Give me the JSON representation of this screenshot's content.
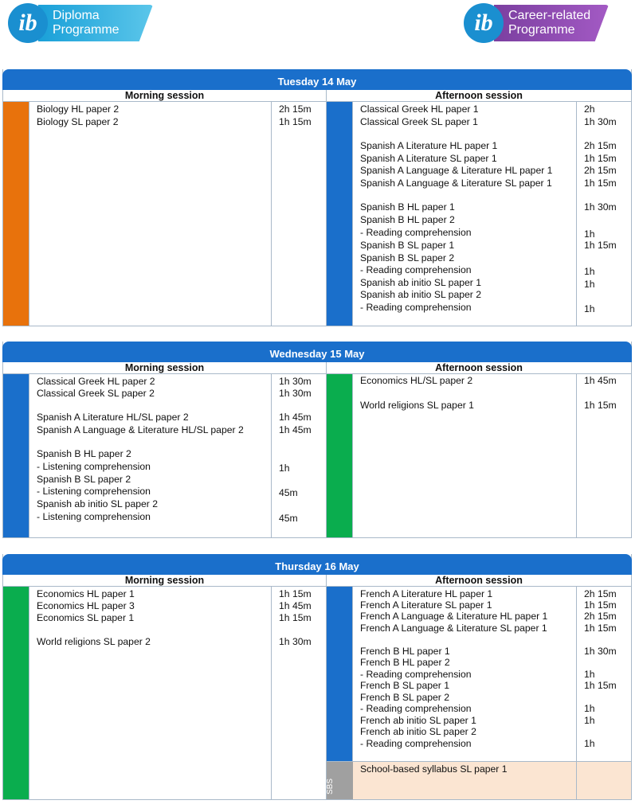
{
  "logos": {
    "left": {
      "mark": "ib",
      "line1": "Diploma",
      "line2": "Programme"
    },
    "right": {
      "mark": "ib",
      "line1": "Career-related",
      "line2": "Programme"
    }
  },
  "session_labels": {
    "morning": "Morning session",
    "afternoon": "Afternoon session"
  },
  "days": [
    {
      "title": "Tuesday 14 May",
      "morning": [
        {
          "subject": "Biology HL paper 2",
          "time": "2h 15m"
        },
        {
          "subject": "Biology SL paper 2",
          "time": "1h 15m"
        }
      ],
      "afternoon": [
        {
          "subject": "Classical Greek HL paper 1",
          "time": "2h"
        },
        {
          "subject": "Classical Greek SL paper 1",
          "time": "1h 30m"
        },
        {
          "subject": "Spanish A Literature HL paper 1",
          "time": "2h 15m"
        },
        {
          "subject": "Spanish A Literature SL paper 1",
          "time": "1h 15m"
        },
        {
          "subject": "Spanish A Language & Literature HL paper 1",
          "time": "2h 15m"
        },
        {
          "subject": "Spanish A Language & Literature SL paper 1",
          "time": "1h 15m"
        },
        {
          "subject": "Spanish B HL paper 1",
          "time": "1h 30m"
        },
        {
          "subject": "Spanish B HL paper 2",
          "time": ""
        },
        {
          "subject": "- Reading comprehension",
          "time": "1h"
        },
        {
          "subject": "Spanish B SL paper 1",
          "time": "1h 15m"
        },
        {
          "subject": "Spanish B SL paper 2",
          "time": ""
        },
        {
          "subject": "- Reading comprehension",
          "time": "1h"
        },
        {
          "subject": "Spanish ab initio SL paper 1",
          "time": "1h"
        },
        {
          "subject": "Spanish ab initio SL paper 2",
          "time": ""
        },
        {
          "subject": "- Reading comprehension",
          "time": "1h"
        }
      ]
    },
    {
      "title": "Wednesday 15 May",
      "morning": [
        {
          "subject": "Classical Greek HL paper 2",
          "time": "1h 30m"
        },
        {
          "subject": "Classical Greek SL paper 2",
          "time": "1h 30m"
        },
        {
          "subject": "Spanish A Literature HL/SL paper 2",
          "time": "1h 45m"
        },
        {
          "subject": "Spanish A Language & Literature HL/SL paper 2",
          "time": "1h 45m"
        },
        {
          "subject": "Spanish B HL paper 2",
          "time": ""
        },
        {
          "subject": "- Listening comprehension",
          "time": "1h"
        },
        {
          "subject": "Spanish B SL paper 2",
          "time": ""
        },
        {
          "subject": "- Listening comprehension",
          "time": "45m"
        },
        {
          "subject": "Spanish ab initio SL paper 2",
          "time": ""
        },
        {
          "subject": "- Listening comprehension",
          "time": "45m"
        }
      ],
      "afternoon": [
        {
          "subject": "Economics HL/SL paper 2",
          "time": "1h 45m"
        },
        {
          "subject": "World religions SL paper 1",
          "time": "1h 15m"
        }
      ]
    },
    {
      "title": "Thursday 16 May",
      "morning": [
        {
          "subject": "Economics HL paper 1",
          "time": "1h 15m"
        },
        {
          "subject": "Economics HL paper 3",
          "time": "1h 45m"
        },
        {
          "subject": "Economics SL paper 1",
          "time": "1h 15m"
        },
        {
          "subject": "World religions SL paper 2",
          "time": "1h 30m"
        }
      ],
      "afternoon": [
        {
          "subject": "French A Literature HL paper 1",
          "time": "2h 15m"
        },
        {
          "subject": "French A Literature SL paper 1",
          "time": "1h 15m"
        },
        {
          "subject": "French A Language & Literature HL paper 1",
          "time": "2h 15m"
        },
        {
          "subject": "French A Language & Literature SL paper 1",
          "time": "1h 15m"
        },
        {
          "subject": "French B HL paper 1",
          "time": "1h 30m"
        },
        {
          "subject": "French B HL paper 2",
          "time": ""
        },
        {
          "subject": "- Reading comprehension",
          "time": "1h"
        },
        {
          "subject": "French B SL paper 1",
          "time": "1h 15m"
        },
        {
          "subject": "French B SL paper 2",
          "time": ""
        },
        {
          "subject": "- Reading comprehension",
          "time": "1h"
        },
        {
          "subject": "French ab initio SL paper 1",
          "time": "1h"
        },
        {
          "subject": "French ab initio SL paper 2",
          "time": ""
        },
        {
          "subject": "- Reading comprehension",
          "time": "1h"
        }
      ],
      "sbs": {
        "label": "SBS",
        "subject": "School-based syllabus SL paper 1",
        "time": ""
      }
    }
  ],
  "colors": {
    "header": "#1a6fcb",
    "orange": "#e8720c",
    "blue": "#1a6fcb",
    "green": "#0aad4e",
    "sbs_bg": "#fbe5d2",
    "sbs_label": "#a0a0a0"
  }
}
